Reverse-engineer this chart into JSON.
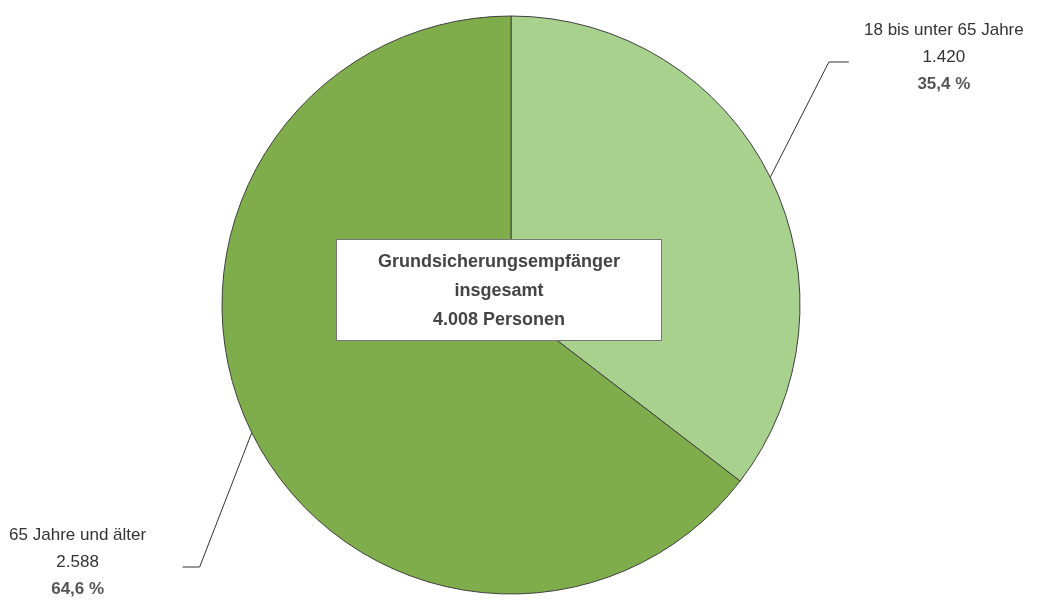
{
  "chart_data": {
    "type": "pie",
    "categories": [
      "18 bis unter 65 Jahre",
      "65 Jahre und älter"
    ],
    "values": [
      1420,
      2588
    ],
    "colors": [
      "#a9d18e",
      "#80ad4b"
    ],
    "value_labels": [
      "1.420\n35,4 %",
      "2.588\n64,6 %"
    ],
    "annotations": [
      "Grundsicherungsempfänger\ninsgesamt\n4.008 Personen"
    ],
    "legend": false
  }
}
